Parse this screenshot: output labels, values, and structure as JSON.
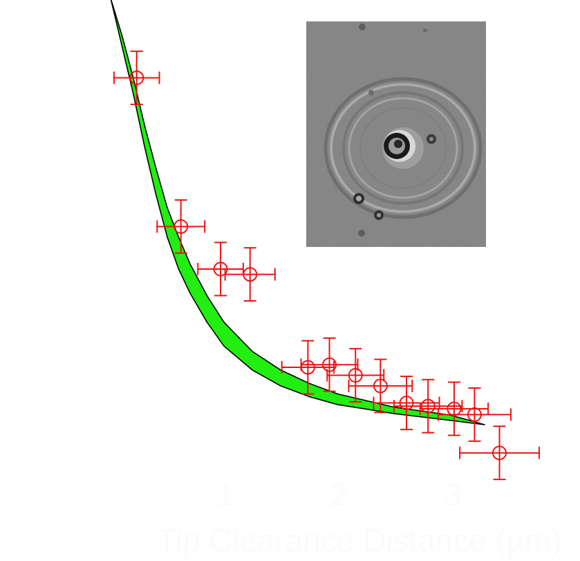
{
  "chart_data": {
    "type": "scatter",
    "title": "",
    "xlabel": "Tip Clearance Distance (µm)",
    "ylabel": "",
    "xlim": [
      0.0,
      3.7
    ],
    "ylim": [
      0.0,
      1.0
    ],
    "xticks": [
      1,
      2,
      3
    ],
    "xtick_labels": [
      "1",
      "2",
      "3"
    ],
    "grid": false,
    "legend": "none",
    "series": [
      {
        "name": "measurements",
        "marker": "open-circle",
        "color": "#ee1111",
        "points": [
          {
            "x": 0.23,
            "y": 0.89,
            "xerr": 0.2,
            "yerr": 0.05
          },
          {
            "x": 0.62,
            "y": 0.61,
            "xerr": 0.21,
            "yerr": 0.05
          },
          {
            "x": 0.97,
            "y": 0.53,
            "xerr": 0.2,
            "yerr": 0.05
          },
          {
            "x": 1.23,
            "y": 0.52,
            "xerr": 0.22,
            "yerr": 0.05
          },
          {
            "x": 1.74,
            "y": 0.345,
            "xerr": 0.23,
            "yerr": 0.05
          },
          {
            "x": 1.93,
            "y": 0.35,
            "xerr": 0.25,
            "yerr": 0.05
          },
          {
            "x": 2.16,
            "y": 0.33,
            "xerr": 0.25,
            "yerr": 0.05
          },
          {
            "x": 2.38,
            "y": 0.31,
            "xerr": 0.28,
            "yerr": 0.05
          },
          {
            "x": 2.61,
            "y": 0.278,
            "xerr": 0.29,
            "yerr": 0.05
          },
          {
            "x": 2.8,
            "y": 0.272,
            "xerr": 0.3,
            "yerr": 0.05
          },
          {
            "x": 3.03,
            "y": 0.267,
            "xerr": 0.3,
            "yerr": 0.05
          },
          {
            "x": 3.21,
            "y": 0.256,
            "xerr": 0.32,
            "yerr": 0.05
          },
          {
            "x": 3.43,
            "y": 0.184,
            "xerr": 0.35,
            "yerr": 0.05
          }
        ]
      }
    ],
    "model_band": {
      "name": "model",
      "color": "#22ee11",
      "upper": [
        {
          "x": 0.0,
          "y": 1.04
        },
        {
          "x": 0.1,
          "y": 0.97
        },
        {
          "x": 0.2,
          "y": 0.89
        },
        {
          "x": 0.3,
          "y": 0.8
        },
        {
          "x": 0.4,
          "y": 0.72
        },
        {
          "x": 0.5,
          "y": 0.645
        },
        {
          "x": 0.6,
          "y": 0.59
        },
        {
          "x": 0.7,
          "y": 0.54
        },
        {
          "x": 0.85,
          "y": 0.48
        },
        {
          "x": 1.0,
          "y": 0.43
        },
        {
          "x": 1.25,
          "y": 0.375
        },
        {
          "x": 1.5,
          "y": 0.34
        },
        {
          "x": 1.75,
          "y": 0.315
        },
        {
          "x": 2.0,
          "y": 0.295
        },
        {
          "x": 2.5,
          "y": 0.27
        },
        {
          "x": 3.0,
          "y": 0.255
        },
        {
          "x": 3.3,
          "y": 0.237
        }
      ],
      "lower": [
        {
          "x": 0.0,
          "y": 1.04
        },
        {
          "x": 0.1,
          "y": 0.95
        },
        {
          "x": 0.2,
          "y": 0.86
        },
        {
          "x": 0.3,
          "y": 0.76
        },
        {
          "x": 0.4,
          "y": 0.67
        },
        {
          "x": 0.5,
          "y": 0.59
        },
        {
          "x": 0.6,
          "y": 0.53
        },
        {
          "x": 0.7,
          "y": 0.485
        },
        {
          "x": 0.85,
          "y": 0.43
        },
        {
          "x": 1.0,
          "y": 0.385
        },
        {
          "x": 1.25,
          "y": 0.34
        },
        {
          "x": 1.5,
          "y": 0.31
        },
        {
          "x": 1.75,
          "y": 0.29
        },
        {
          "x": 2.0,
          "y": 0.275
        },
        {
          "x": 2.5,
          "y": 0.258
        },
        {
          "x": 3.0,
          "y": 0.245
        },
        {
          "x": 3.3,
          "y": 0.237
        }
      ]
    },
    "inset": {
      "kind": "microscope-photo",
      "description_color": "#8a8a8a"
    }
  }
}
